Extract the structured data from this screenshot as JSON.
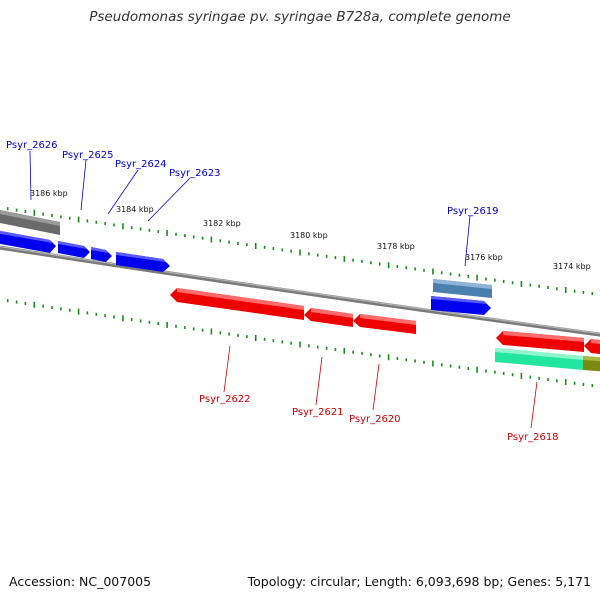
{
  "title": "Pseudomonas syringae pv. syringae B728a, complete genome",
  "accession": "Accession: NC_007005",
  "summary": "Topology: circular; Length: 6,093,698 bp; Genes: 5,171",
  "colors": {
    "backbone": "#808080",
    "tick": "#1a8a1a",
    "forward_gene": "#0000ff",
    "reverse_gene": "#ff0000",
    "forward_label": "#0000cc",
    "reverse_label": "#cc0000",
    "steel_feature": "#4a7fb0",
    "grey_feature": "#666666",
    "green_feature": "#22e6a0",
    "olive_feature": "#7a8a10"
  },
  "kbp_ticks": [
    "3186 kbp",
    "3184 kbp",
    "3182 kbp",
    "3180 kbp",
    "3178 kbp",
    "3176 kbp",
    "3174 kbp"
  ],
  "gene_labels": {
    "forward": [
      "Psyr_2626",
      "Psyr_2625",
      "Psyr_2624",
      "Psyr_2623",
      "Psyr_2619"
    ],
    "reverse": [
      "Psyr_2622",
      "Psyr_2621",
      "Psyr_2620",
      "Psyr_2618"
    ]
  }
}
